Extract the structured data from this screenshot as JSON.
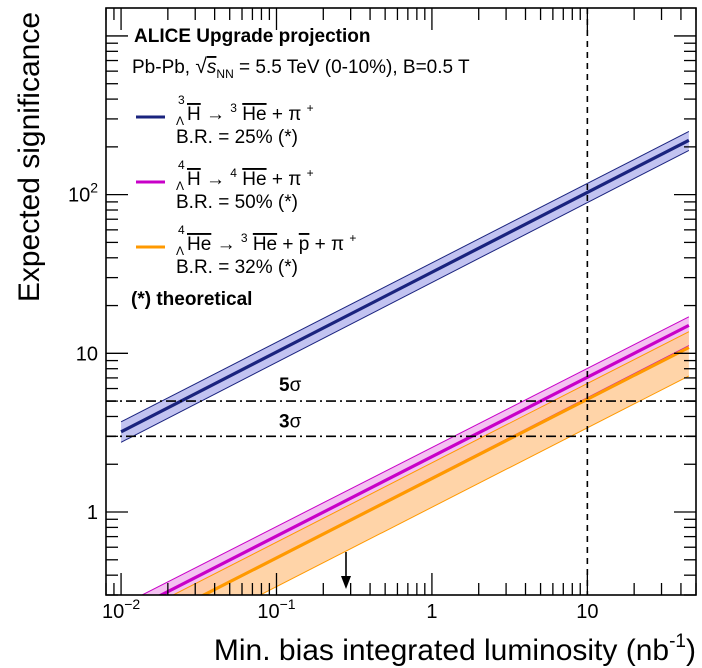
{
  "chart_data": {
    "type": "line",
    "scale": {
      "x": "log",
      "y": "log"
    },
    "xlim": [
      0.008,
      50
    ],
    "ylim": [
      0.3,
      1500
    ],
    "xlabel": "Min. bias integrated luminosity (nb",
    "xlabel_sup": "-1",
    "xlabel_end": ")",
    "ylabel": "Expected significance",
    "x_ticks": [
      {
        "value": 0.01,
        "base": "10",
        "exp": "−2"
      },
      {
        "value": 0.1,
        "base": "10",
        "exp": "−1"
      },
      {
        "value": 1,
        "base": "1",
        "exp": ""
      },
      {
        "value": 10,
        "base": "10",
        "exp": ""
      }
    ],
    "y_ticks": [
      {
        "value": 1,
        "base": "1",
        "exp": ""
      },
      {
        "value": 10,
        "base": "10",
        "exp": ""
      },
      {
        "value": 100,
        "base": "10",
        "exp": "2"
      }
    ],
    "legend": {
      "position": "top-left",
      "title": "ALICE Upgrade projection",
      "subtitle_prefix": "Pb-Pb, ",
      "subtitle_sqrt": "s",
      "subtitle_sub": "NN",
      "subtitle_suffix": " = 5.5 TeV (0-10%), B=0.5 T",
      "footnote": "(*) theoretical",
      "entries": [
        {
          "decay_a": "3",
          "decay_b": "Λ",
          "decay_c": "H",
          "arrow": " → ",
          "prod_sup": "3",
          "prod": "He",
          "rest": " + π",
          "rest_sup": "+",
          "extra": "",
          "br": "B.R. = 25% (*)",
          "color": "#1a237e"
        },
        {
          "decay_a": "4",
          "decay_b": "Λ",
          "decay_c": "H",
          "arrow": " → ",
          "prod_sup": "4",
          "prod": "He",
          "rest": " + π",
          "rest_sup": "+",
          "extra": "",
          "br": "B.R. = 50% (*)",
          "color": "#c800c8"
        },
        {
          "decay_a": "4",
          "decay_b": "Λ",
          "decay_c": "He",
          "arrow": " → ",
          "prod_sup": "3",
          "prod": "He",
          "rest": " + ",
          "pbar": "p",
          "rest2": " + π",
          "rest_sup": "+",
          "br": "B.R. = 32% (*)",
          "color": "#ff9900"
        }
      ]
    },
    "series": [
      {
        "color": "#1a237e",
        "band_color": "#b7b9ee",
        "x": [
          0.01,
          45
        ],
        "y": [
          3.2,
          220
        ],
        "y_low": [
          2.75,
          190
        ],
        "y_high": [
          3.7,
          250
        ]
      },
      {
        "color": "#c800c8",
        "band_color": "#f2b6ee",
        "x": [
          0.01,
          45
        ],
        "y": [
          0.2227,
          15
        ],
        "y_low": [
          0.163,
          11.2
        ],
        "y_high": [
          0.257,
          17
        ]
      },
      {
        "color": "#ff9900",
        "band_color": "#ffcc99",
        "x": [
          0.01,
          45
        ],
        "y": [
          0.1625,
          10.9
        ],
        "y_low": [
          0.107,
          7.2
        ],
        "y_high": [
          0.204,
          13.7
        ]
      }
    ],
    "reference_lines": [
      {
        "orientation": "horizontal",
        "value": 5,
        "label": "5",
        "label_symbol": "σ",
        "style": "dash-dot"
      },
      {
        "orientation": "horizontal",
        "value": 3,
        "label": "3",
        "label_symbol": "σ",
        "style": "dash-dot"
      },
      {
        "orientation": "vertical",
        "value": 10,
        "style": "dashed"
      }
    ],
    "arrow_marker": {
      "x": 0.28
    }
  }
}
